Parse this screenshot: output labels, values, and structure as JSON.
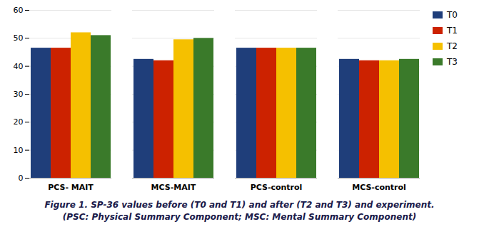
{
  "chart_data": {
    "type": "bar",
    "categories": [
      "PCS- MAIT",
      "MCS-MAIT",
      "PCS-control",
      "MCS-control"
    ],
    "series": [
      {
        "name": "T0",
        "color": "#1F3E7A",
        "values": [
          46.5,
          42.5,
          46.5,
          42.5
        ]
      },
      {
        "name": "T1",
        "color": "#CC2200",
        "values": [
          46.5,
          42.0,
          46.5,
          42.0
        ]
      },
      {
        "name": "T2",
        "color": "#F5C000",
        "values": [
          52.0,
          49.5,
          46.5,
          42.0
        ]
      },
      {
        "name": "T3",
        "color": "#3A7A2A",
        "values": [
          51.0,
          50.0,
          46.5,
          42.5
        ]
      }
    ],
    "ylim": [
      0,
      60
    ],
    "yticks": [
      0,
      10,
      20,
      30,
      40,
      50,
      60
    ],
    "grid": true,
    "legend": "right",
    "caption": [
      "Figure 1. SP-36 values before (T0 and T1) and after (T2 and T3) and experiment.",
      "(PSC: Physical Summary Component; MSC: Mental Summary Component)"
    ]
  }
}
